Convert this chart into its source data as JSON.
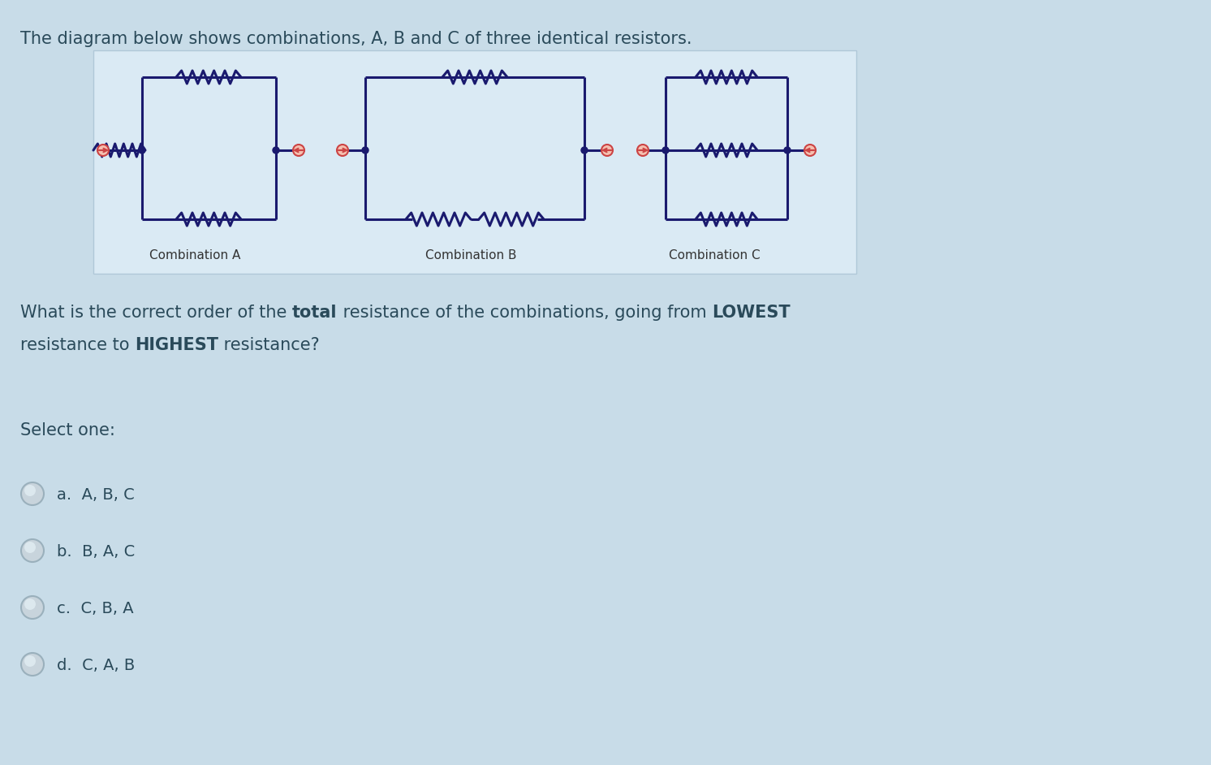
{
  "bg_color": "#c8dce8",
  "panel_bg": "#daeaf4",
  "panel_border": "#b0c8d8",
  "wire_color": "#1a1a6e",
  "terminal_color": "#cc4444",
  "text_color": "#2a4a5a",
  "label_color": "#333333",
  "title": "The diagram below shows combinations, A, B and C of three identical resistors.",
  "q_line1_parts": [
    [
      "What is the correct order of the ",
      false
    ],
    [
      "total",
      true
    ],
    [
      " resistance of the combinations, going from ",
      false
    ],
    [
      "LOWEST",
      true
    ]
  ],
  "q_line2_parts": [
    [
      "resistance to ",
      false
    ],
    [
      "HIGHEST",
      true
    ],
    [
      " resistance?",
      false
    ]
  ],
  "select_one": "Select one:",
  "options": [
    [
      "a.",
      "  A, B, C"
    ],
    [
      "b.",
      "  B, A, C"
    ],
    [
      "c.",
      "  C, B, A"
    ],
    [
      "d.",
      "  C, A, B"
    ]
  ],
  "combo_labels": [
    "Combination A",
    "Combination B",
    "Combination C"
  ],
  "title_fontsize": 15,
  "body_fontsize": 15,
  "label_fontsize": 11,
  "option_fontsize": 14
}
